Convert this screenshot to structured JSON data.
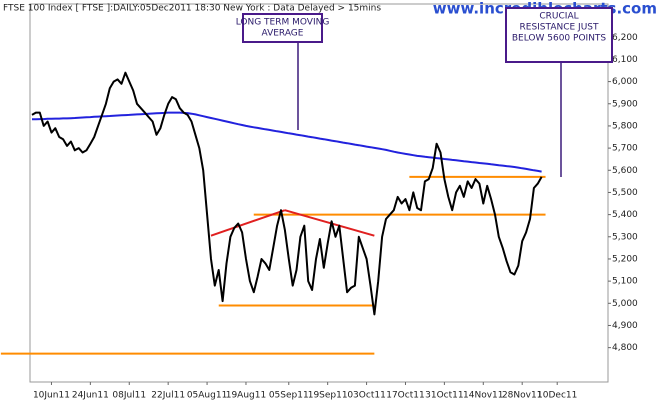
{
  "chart_data": {
    "type": "line",
    "title": "FTSE 100 Index [ FTSE ]:DAILY:05Dec2011 18:30 New York : Data Delayed > 15mins",
    "watermark": "www.incrediblecharts.com",
    "categories": [
      null,
      null,
      null,
      null,
      null,
      "10Jun11",
      null,
      null,
      null,
      null,
      null,
      null,
      null,
      null,
      null,
      "24Jun11",
      null,
      null,
      null,
      null,
      null,
      null,
      null,
      null,
      null,
      "08Jul11",
      null,
      null,
      null,
      null,
      null,
      null,
      null,
      null,
      null,
      "22Jul11",
      null,
      null,
      null,
      null,
      null,
      null,
      null,
      null,
      null,
      "05Aug11",
      null,
      null,
      null,
      null,
      null,
      null,
      null,
      null,
      null,
      "19Aug11",
      null,
      null,
      null,
      null,
      null,
      null,
      null,
      null,
      null,
      null,
      "05Sep11",
      null,
      null,
      null,
      null,
      null,
      null,
      null,
      null,
      null,
      "19Sep11",
      null,
      null,
      null,
      null,
      null,
      null,
      null,
      null,
      null,
      "03Oct11",
      null,
      null,
      null,
      null,
      null,
      null,
      null,
      null,
      null,
      "17Oct11",
      null,
      null,
      null,
      null,
      null,
      null,
      null,
      null,
      null,
      "31Oct11",
      null,
      null,
      null,
      null,
      null,
      null,
      null,
      null,
      null,
      "14Nov11",
      null,
      null,
      null,
      null,
      null,
      null,
      null,
      null,
      null,
      "28Nov11",
      null,
      null,
      null,
      null,
      null,
      null,
      null,
      null,
      "10Dec11",
      null,
      null,
      null,
      null,
      null,
      null,
      null,
      null,
      null,
      null,
      null
    ],
    "series": [
      {
        "color": "#000000",
        "values": [
          5850,
          5860,
          5860,
          5800,
          5820,
          5770,
          5790,
          5750,
          5740,
          5710,
          5730,
          5690,
          5700,
          5680,
          5690,
          5720,
          5750,
          5800,
          5850,
          5900,
          5970,
          6000,
          6010,
          5990,
          6040,
          6000,
          5960,
          5900,
          5880,
          5860,
          5840,
          5820,
          5760,
          5790,
          5850,
          5900,
          5930,
          5920,
          5880,
          5860,
          5850,
          5820,
          5760,
          5700,
          5600,
          5400,
          5200,
          5080,
          5150,
          5010,
          5180,
          5300,
          5340,
          5360,
          5320,
          5200,
          5100,
          5050,
          5120,
          5200,
          5180,
          5150,
          5250,
          5350,
          5420,
          5330,
          5200,
          5080,
          5150,
          5300,
          5350,
          5100,
          5060,
          5200,
          5290,
          5160,
          5270,
          5370,
          5300,
          5350,
          5200,
          5050,
          5070,
          5080,
          5300,
          5250,
          5200,
          5080,
          4950,
          5100,
          5300,
          5380,
          5400,
          5420,
          5480,
          5450,
          5470,
          5420,
          5500,
          5430,
          5420,
          5550,
          5560,
          5610,
          5720,
          5680,
          5560,
          5480,
          5420,
          5500,
          5530,
          5480,
          5550,
          5520,
          5560,
          5540,
          5450,
          5530,
          5470,
          5400,
          5300,
          5250,
          5190,
          5140,
          5130,
          5170,
          5280,
          5320,
          5380,
          5520,
          5540,
          5570,
          null,
          null,
          null,
          null,
          null,
          null,
          null,
          null,
          null,
          null,
          null,
          null,
          null,
          null,
          null
        ]
      },
      {
        "color": "#2222dd",
        "values": [
          5830,
          5830,
          5831,
          5831,
          5832,
          5832,
          5833,
          5833,
          5834,
          5834,
          5835,
          5836,
          5837,
          5838,
          5839,
          5840,
          5841,
          5842,
          5843,
          5844,
          5845,
          5846,
          5847,
          5848,
          5849,
          5850,
          5851,
          5852,
          5853,
          5854,
          5855,
          5856,
          5857,
          5858,
          5859,
          5860,
          5860,
          5860,
          5860,
          5859,
          5858,
          5855,
          5852,
          5848,
          5844,
          5840,
          5836,
          5832,
          5828,
          5824,
          5820,
          5816,
          5812,
          5808,
          5804,
          5800,
          5797,
          5794,
          5791,
          5788,
          5785,
          5782,
          5779,
          5776,
          5773,
          5770,
          5767,
          5764,
          5761,
          5758,
          5755,
          5752,
          5749,
          5746,
          5743,
          5740,
          5737,
          5734,
          5731,
          5728,
          5725,
          5722,
          5719,
          5716,
          5713,
          5710,
          5707,
          5704,
          5701,
          5698,
          5695,
          5692,
          5688,
          5684,
          5680,
          5677,
          5674,
          5671,
          5668,
          5665,
          5663,
          5661,
          5659,
          5657,
          5655,
          5653,
          5651,
          5649,
          5647,
          5645,
          5643,
          5641,
          5639,
          5637,
          5635,
          5633,
          5631,
          5629,
          5627,
          5625,
          5623,
          5621,
          5619,
          5617,
          5615,
          5612,
          5609,
          5606,
          5603,
          5600,
          5597,
          5594,
          null,
          null,
          null,
          null,
          null,
          null,
          null,
          null,
          null,
          null,
          null,
          null,
          null,
          null,
          null
        ]
      }
    ],
    "levels": [
      {
        "color": "#ff8c00",
        "points": [
          [
            -8,
            4773
          ],
          [
            88,
            4773
          ]
        ]
      },
      {
        "color": "#ff8c00",
        "points": [
          [
            48,
            4990
          ],
          [
            88,
            4990
          ]
        ]
      },
      {
        "color": "#ff8c00",
        "points": [
          [
            57,
            5400
          ],
          [
            132,
            5400
          ]
        ]
      },
      {
        "color": "#ff8c00",
        "points": [
          [
            97,
            5570
          ],
          [
            132,
            5570
          ]
        ]
      },
      {
        "color": "#e02020",
        "points": [
          [
            46,
            5305
          ],
          [
            65,
            5420
          ]
        ]
      },
      {
        "color": "#e02020",
        "points": [
          [
            65,
            5420
          ],
          [
            88,
            5305
          ]
        ]
      }
    ],
    "annotations": [
      {
        "lines": [
          "LONG TERM MOVING",
          "AVERAGE"
        ]
      },
      {
        "lines": [
          "CRUCIAL",
          "RESISTANCE JUST",
          "BELOW 5600 POINTS"
        ]
      }
    ],
    "ylim": [
      4645,
      6350
    ],
    "yticks": [
      {
        "value": 4800,
        "label": "4,800"
      },
      {
        "value": 4900,
        "label": "4,900"
      },
      {
        "value": 5000,
        "label": "5,000"
      },
      {
        "value": 5100,
        "label": "5,100"
      },
      {
        "value": 5200,
        "label": "5,200"
      },
      {
        "value": 5300,
        "label": "5,300"
      },
      {
        "value": 5400,
        "label": "5,400"
      },
      {
        "value": 5500,
        "label": "5,500"
      },
      {
        "value": 5600,
        "label": "5,600"
      },
      {
        "value": 5700,
        "label": "5,700"
      },
      {
        "value": 5800,
        "label": "5,800"
      },
      {
        "value": 5900,
        "label": "5,900"
      },
      {
        "value": 6000,
        "label": "6,000"
      },
      {
        "value": 6100,
        "label": "6,100"
      },
      {
        "value": 6200,
        "label": "6,200"
      }
    ]
  }
}
